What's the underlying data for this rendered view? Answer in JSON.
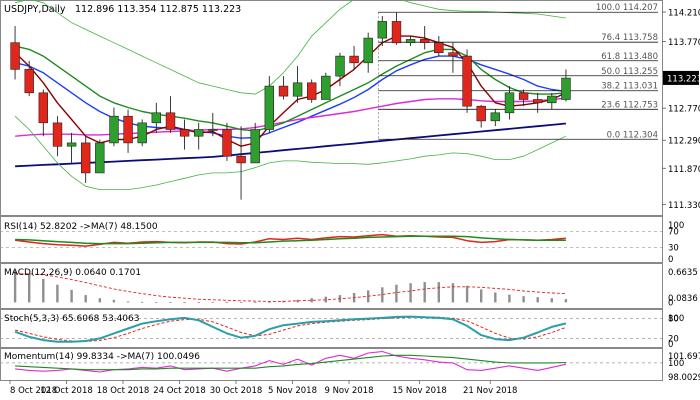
{
  "header": {
    "symbol_line": "USDJPY,Daily",
    "ohlc": "112.896 113.354 112.875 113.223"
  },
  "colors": {
    "bull_candle": "#2e9e2e",
    "bear_candle": "#e1261c",
    "ma_darkblue": "#0b0b7a",
    "ma_blue": "#1e3cff",
    "ma_magenta": "#e02ad6",
    "ma_darkred": "#8b0000",
    "ma_green": "#1f8a1f",
    "bollinger": "#43b343",
    "fib_lines": "#1a1a1a",
    "price_tag_bg": "#000000",
    "price_tag_text": "#ffffff",
    "stoch_main": "#2a9fa8",
    "stoch_signal": "#e1261c",
    "rsi": "#e1261c",
    "rsi_ma": "#1f8a1f",
    "momentum": "#e02ad6",
    "momentum_ma": "#1f8a1f"
  },
  "chart_data": [
    {
      "type": "candlestick",
      "name": "USDJPY,Daily",
      "y_ticks": [
        114.21,
        113.77,
        113.223,
        112.77,
        112.29,
        111.87,
        111.33
      ],
      "current_price": 113.223,
      "x_labels": [
        "8 Oct 2018",
        "12 Oct 2018",
        "18 Oct 2018",
        "24 Oct 2018",
        "30 Oct 2018",
        "5 Nov 2018",
        "9 Nov 2018",
        "15 Nov 2018",
        "21 Nov 2018"
      ],
      "candles": [
        {
          "o": 113.75,
          "h": 114.0,
          "l": 113.2,
          "c": 113.35
        },
        {
          "o": 113.35,
          "h": 113.48,
          "l": 112.95,
          "c": 113.0
        },
        {
          "o": 113.0,
          "h": 113.05,
          "l": 112.35,
          "c": 112.55
        },
        {
          "o": 112.55,
          "h": 112.65,
          "l": 112.05,
          "c": 112.2
        },
        {
          "o": 112.2,
          "h": 112.4,
          "l": 111.95,
          "c": 112.25
        },
        {
          "o": 112.25,
          "h": 112.35,
          "l": 111.65,
          "c": 111.8
        },
        {
          "o": 111.8,
          "h": 112.3,
          "l": 111.8,
          "c": 112.25
        },
        {
          "o": 112.25,
          "h": 112.78,
          "l": 112.2,
          "c": 112.65
        },
        {
          "o": 112.65,
          "h": 112.75,
          "l": 112.1,
          "c": 112.25
        },
        {
          "o": 112.25,
          "h": 112.6,
          "l": 112.2,
          "c": 112.55
        },
        {
          "o": 112.55,
          "h": 112.85,
          "l": 112.4,
          "c": 112.7
        },
        {
          "o": 112.7,
          "h": 112.95,
          "l": 112.4,
          "c": 112.45
        },
        {
          "o": 112.45,
          "h": 112.6,
          "l": 112.15,
          "c": 112.35
        },
        {
          "o": 112.35,
          "h": 112.55,
          "l": 112.15,
          "c": 112.45
        },
        {
          "o": 112.45,
          "h": 112.7,
          "l": 112.35,
          "c": 112.45
        },
        {
          "o": 112.45,
          "h": 112.55,
          "l": 111.98,
          "c": 112.05
        },
        {
          "o": 112.05,
          "h": 112.5,
          "l": 111.4,
          "c": 111.95
        },
        {
          "o": 111.95,
          "h": 112.55,
          "l": 111.95,
          "c": 112.45
        },
        {
          "o": 112.45,
          "h": 113.25,
          "l": 112.4,
          "c": 113.1
        },
        {
          "o": 113.1,
          "h": 113.25,
          "l": 112.9,
          "c": 112.95
        },
        {
          "o": 112.95,
          "h": 113.4,
          "l": 112.85,
          "c": 113.15
        },
        {
          "o": 113.15,
          "h": 113.2,
          "l": 112.85,
          "c": 112.9
        },
        {
          "o": 112.9,
          "h": 113.3,
          "l": 112.9,
          "c": 113.25
        },
        {
          "o": 113.25,
          "h": 113.6,
          "l": 113.1,
          "c": 113.55
        },
        {
          "o": 113.55,
          "h": 113.7,
          "l": 113.35,
          "c": 113.45
        },
        {
          "o": 113.45,
          "h": 113.9,
          "l": 113.3,
          "c": 113.82
        },
        {
          "o": 113.82,
          "h": 114.15,
          "l": 113.7,
          "c": 114.07
        },
        {
          "o": 114.07,
          "h": 114.2,
          "l": 113.72,
          "c": 113.75
        },
        {
          "o": 113.75,
          "h": 113.85,
          "l": 113.7,
          "c": 113.8
        },
        {
          "o": 113.8,
          "h": 114.0,
          "l": 113.65,
          "c": 113.75
        },
        {
          "o": 113.75,
          "h": 113.85,
          "l": 113.55,
          "c": 113.6
        },
        {
          "o": 113.6,
          "h": 113.75,
          "l": 113.3,
          "c": 113.55
        },
        {
          "o": 113.55,
          "h": 113.65,
          "l": 112.7,
          "c": 112.8
        },
        {
          "o": 112.8,
          "h": 112.82,
          "l": 112.48,
          "c": 112.58
        },
        {
          "o": 112.58,
          "h": 112.75,
          "l": 112.5,
          "c": 112.7
        },
        {
          "o": 112.7,
          "h": 113.1,
          "l": 112.6,
          "c": 113.0
        },
        {
          "o": 113.0,
          "h": 113.05,
          "l": 112.8,
          "c": 112.9
        },
        {
          "o": 112.9,
          "h": 113.0,
          "l": 112.7,
          "c": 112.85
        },
        {
          "o": 112.85,
          "h": 113.0,
          "l": 112.75,
          "c": 112.95
        },
        {
          "o": 112.9,
          "h": 113.35,
          "l": 112.87,
          "c": 113.22
        }
      ],
      "series": [
        {
          "name": "MA long",
          "color_key": "ma_darkblue",
          "values": [
            111.9,
            111.91,
            111.92,
            111.93,
            111.94,
            111.95,
            111.96,
            111.97,
            111.98,
            111.99,
            112.0,
            112.01,
            112.02,
            112.03,
            112.04,
            112.06,
            112.08,
            112.1,
            112.12,
            112.14,
            112.16,
            112.18,
            112.2,
            112.22,
            112.24,
            112.26,
            112.28,
            112.3,
            112.32,
            112.34,
            112.36,
            112.38,
            112.4,
            112.42,
            112.44,
            112.46,
            112.48,
            112.5,
            112.52,
            112.54
          ]
        },
        {
          "name": "MA blue",
          "color_key": "ma_blue",
          "values": [
            113.45,
            113.4,
            113.3,
            113.15,
            113.0,
            112.85,
            112.72,
            112.62,
            112.55,
            112.5,
            112.48,
            112.47,
            112.45,
            112.42,
            112.4,
            112.35,
            112.32,
            112.33,
            112.4,
            112.48,
            112.56,
            112.65,
            112.74,
            112.83,
            112.93,
            113.05,
            113.2,
            113.33,
            113.42,
            113.5,
            113.55,
            113.55,
            113.5,
            113.42,
            113.35,
            113.28,
            113.2,
            113.1,
            113.05,
            113.02
          ]
        },
        {
          "name": "MA magenta",
          "color_key": "ma_magenta",
          "values": [
            112.35,
            112.37,
            112.38,
            112.38,
            112.38,
            112.37,
            112.37,
            112.38,
            112.39,
            112.4,
            112.41,
            112.42,
            112.43,
            112.44,
            112.45,
            112.45,
            112.46,
            112.48,
            112.52,
            112.56,
            112.6,
            112.63,
            112.66,
            112.69,
            112.72,
            112.76,
            112.8,
            112.84,
            112.87,
            112.9,
            112.91,
            112.91,
            112.9,
            112.88,
            112.87,
            112.87,
            112.87,
            112.88,
            112.9,
            112.92
          ]
        },
        {
          "name": "MA green",
          "color_key": "ma_green",
          "values": [
            113.7,
            113.65,
            113.55,
            113.4,
            113.25,
            113.1,
            112.95,
            112.85,
            112.78,
            112.72,
            112.68,
            112.65,
            112.62,
            112.58,
            112.55,
            112.5,
            112.45,
            112.43,
            112.48,
            112.55,
            112.65,
            112.75,
            112.85,
            112.95,
            113.05,
            113.15,
            113.28,
            113.4,
            113.5,
            113.6,
            113.65,
            113.65,
            113.55,
            113.35,
            113.2,
            113.08,
            113.0,
            112.98,
            112.98,
            113.0
          ]
        },
        {
          "name": "MA darkred",
          "color_key": "ma_darkred",
          "values": [
            113.6,
            113.4,
            113.15,
            112.85,
            112.6,
            112.35,
            112.25,
            112.3,
            112.3,
            112.35,
            112.45,
            112.5,
            112.45,
            112.4,
            112.42,
            112.3,
            112.2,
            112.25,
            112.5,
            112.7,
            112.9,
            112.95,
            113.05,
            113.2,
            113.35,
            113.55,
            113.75,
            113.85,
            113.85,
            113.82,
            113.75,
            113.68,
            113.45,
            113.1,
            112.85,
            112.8,
            112.82,
            112.85,
            112.9,
            113.0
          ]
        },
        {
          "name": "Bollinger upper",
          "color_key": "bollinger",
          "values": [
            114.35,
            114.4,
            114.35,
            114.2,
            114.05,
            113.95,
            113.85,
            113.75,
            113.65,
            113.55,
            113.45,
            113.35,
            113.25,
            113.15,
            113.1,
            113.05,
            113.0,
            112.98,
            113.1,
            113.3,
            113.55,
            113.85,
            114.05,
            114.25,
            114.4,
            114.45,
            114.45,
            114.42,
            114.35,
            114.3,
            114.25,
            114.23,
            114.22,
            114.22,
            114.21,
            114.2,
            114.19,
            114.18,
            114.15,
            114.12
          ]
        },
        {
          "name": "Bollinger lower",
          "color_key": "bollinger",
          "values": [
            112.65,
            112.45,
            112.2,
            111.95,
            111.75,
            111.6,
            111.55,
            111.55,
            111.55,
            111.58,
            111.62,
            111.67,
            111.72,
            111.77,
            111.8,
            111.8,
            111.82,
            111.88,
            111.95,
            111.98,
            111.98,
            111.96,
            111.95,
            111.94,
            111.94,
            111.93,
            111.95,
            111.98,
            112.01,
            112.05,
            112.07,
            112.1,
            112.09,
            112.05,
            112.0,
            112.0,
            112.05,
            112.15,
            112.25,
            112.35
          ]
        }
      ],
      "fibonacci": [
        {
          "label": "100.0 114.207",
          "value": 114.207
        },
        {
          "label": "76.4 113.758",
          "value": 113.758
        },
        {
          "label": "61.8 113.480",
          "value": 113.48
        },
        {
          "label": "50.0 113.255",
          "value": 113.255
        },
        {
          "label": "38.2 113.031",
          "value": 113.031
        },
        {
          "label": "23.6 112.753",
          "value": 112.753
        },
        {
          "label": "0.0 112.304",
          "value": 112.304
        }
      ]
    },
    {
      "type": "line",
      "name": "RSI(14) 52.8202 ->MA(7) 48.1500",
      "y_ticks": [
        100,
        70,
        30,
        0
      ],
      "ylim": [
        0,
        100
      ],
      "series": [
        {
          "name": "RSI(14)",
          "color_key": "rsi",
          "values": [
            48,
            44,
            40,
            37,
            36,
            34,
            38,
            43,
            41,
            44,
            45,
            43,
            42,
            44,
            44,
            40,
            39,
            44,
            52,
            50,
            53,
            50,
            54,
            57,
            56,
            59,
            62,
            58,
            59,
            58,
            56,
            55,
            47,
            43,
            45,
            50,
            49,
            48,
            50,
            53
          ]
        },
        {
          "name": "MA(7)",
          "color_key": "rsi_ma",
          "values": [
            50,
            49,
            47,
            45,
            43,
            41,
            40,
            40,
            40,
            41,
            42,
            43,
            43,
            43,
            43,
            43,
            42,
            42,
            44,
            46,
            47,
            48,
            50,
            52,
            53,
            55,
            56,
            57,
            58,
            58,
            58,
            58,
            57,
            54,
            52,
            50,
            49,
            48,
            48,
            48
          ]
        }
      ]
    },
    {
      "type": "bar",
      "name": "MACD(12,26,9) 0.0640 0.1701",
      "y_ticks": [
        0.6635,
        0.0836,
        0
      ],
      "ylim": [
        -0.05,
        0.7
      ],
      "series": [
        {
          "name": "MACD",
          "values": [
            0.62,
            0.55,
            0.45,
            0.34,
            0.24,
            0.14,
            0.08,
            0.05,
            0.02,
            0.01,
            0.005,
            0.005,
            0.005,
            0.005,
            0.005,
            0.005,
            0.005,
            0.005,
            0.01,
            0.03,
            0.05,
            0.08,
            0.11,
            0.14,
            0.18,
            0.23,
            0.29,
            0.34,
            0.37,
            0.39,
            0.39,
            0.37,
            0.32,
            0.25,
            0.19,
            0.15,
            0.12,
            0.1,
            0.08,
            0.064
          ]
        },
        {
          "name": "Signal",
          "values": [
            0.55,
            0.55,
            0.53,
            0.49,
            0.44,
            0.38,
            0.32,
            0.26,
            0.21,
            0.17,
            0.13,
            0.1,
            0.08,
            0.06,
            0.05,
            0.04,
            0.03,
            0.025,
            0.02,
            0.02,
            0.03,
            0.04,
            0.05,
            0.07,
            0.09,
            0.12,
            0.15,
            0.19,
            0.22,
            0.26,
            0.28,
            0.3,
            0.3,
            0.29,
            0.27,
            0.25,
            0.22,
            0.2,
            0.18,
            0.17
          ]
        }
      ]
    },
    {
      "type": "line",
      "name": "Stoch(5,3,3) 65.6068 53.4063",
      "y_ticks": [
        100,
        80,
        20,
        0
      ],
      "ylim": [
        0,
        100
      ],
      "series": [
        {
          "name": "%K",
          "color_key": "stoch_main",
          "values": [
            40,
            25,
            15,
            10,
            10,
            12,
            20,
            35,
            50,
            65,
            72,
            78,
            82,
            75,
            55,
            35,
            22,
            28,
            48,
            60,
            65,
            70,
            72,
            75,
            78,
            80,
            82,
            85,
            86,
            84,
            82,
            78,
            58,
            30,
            18,
            15,
            22,
            38,
            55,
            65.6
          ]
        },
        {
          "name": "%D",
          "color_key": "stoch_signal",
          "values": [
            45,
            35,
            25,
            17,
            12,
            11,
            14,
            22,
            35,
            50,
            62,
            72,
            77,
            78,
            70,
            55,
            38,
            28,
            32,
            45,
            58,
            65,
            69,
            72,
            75,
            77,
            80,
            82,
            84,
            85,
            84,
            81,
            73,
            55,
            35,
            21,
            18,
            25,
            38,
            53.4
          ]
        }
      ]
    },
    {
      "type": "line",
      "name": "Momentum(14) 99.8334 ->MA(7) 100.0496",
      "y_ticks": [
        101.6979,
        100,
        98.0029
      ],
      "ylim": [
        98.0029,
        101.6979
      ],
      "series": [
        {
          "name": "Momentum(14)",
          "color_key": "momentum",
          "values": [
            99.2,
            99.0,
            98.9,
            99.0,
            99.2,
            99.0,
            98.8,
            99.1,
            99.2,
            99.4,
            99.3,
            99.6,
            99.1,
            99.2,
            99.3,
            98.9,
            99.3,
            99.6,
            100.3,
            99.8,
            100.5,
            99.7,
            100.6,
            101.0,
            100.6,
            101.3,
            101.5,
            100.9,
            100.6,
            100.4,
            100.1,
            100.0,
            99.1,
            99.0,
            99.3,
            99.6,
            99.3,
            99.0,
            99.4,
            99.83
          ]
        },
        {
          "name": "MA(7)",
          "color_key": "momentum_ma",
          "values": [
            99.6,
            99.5,
            99.4,
            99.3,
            99.2,
            99.1,
            99.1,
            99.1,
            99.1,
            99.2,
            99.2,
            99.3,
            99.3,
            99.3,
            99.3,
            99.3,
            99.3,
            99.3,
            99.5,
            99.6,
            99.8,
            99.9,
            100.1,
            100.3,
            100.5,
            100.7,
            100.9,
            101.0,
            101.0,
            100.9,
            100.8,
            100.7,
            100.5,
            100.3,
            100.1,
            100.0,
            100.0,
            100.0,
            100.0,
            100.05
          ]
        }
      ]
    }
  ]
}
